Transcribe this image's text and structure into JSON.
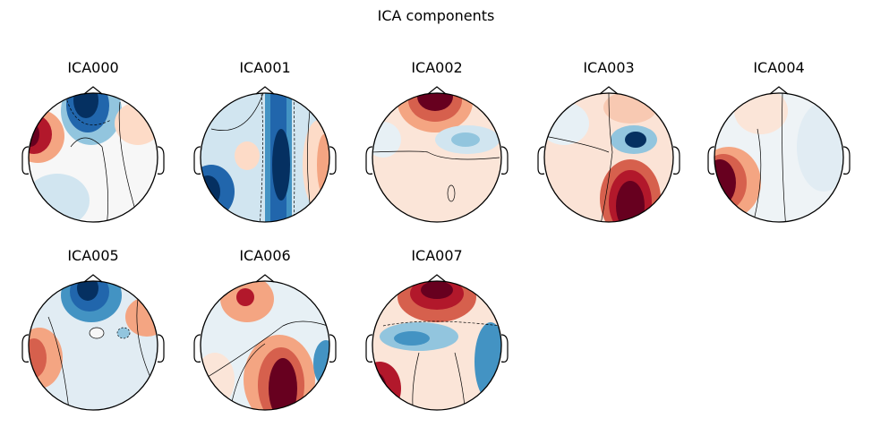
{
  "figure": {
    "title": "ICA components"
  },
  "components": [
    {
      "label": "ICA000",
      "colormap": "RdBu_r"
    },
    {
      "label": "ICA001",
      "colormap": "RdBu_r"
    },
    {
      "label": "ICA002",
      "colormap": "RdBu_r"
    },
    {
      "label": "ICA003",
      "colormap": "RdBu_r"
    },
    {
      "label": "ICA004",
      "colormap": "RdBu_r"
    },
    {
      "label": "ICA005",
      "colormap": "RdBu_r"
    },
    {
      "label": "ICA006",
      "colormap": "RdBu_r"
    },
    {
      "label": "ICA007",
      "colormap": "RdBu_r"
    }
  ],
  "colors": {
    "red": "#67001f",
    "blue": "#053061",
    "neutral": "#f7f7f7"
  }
}
